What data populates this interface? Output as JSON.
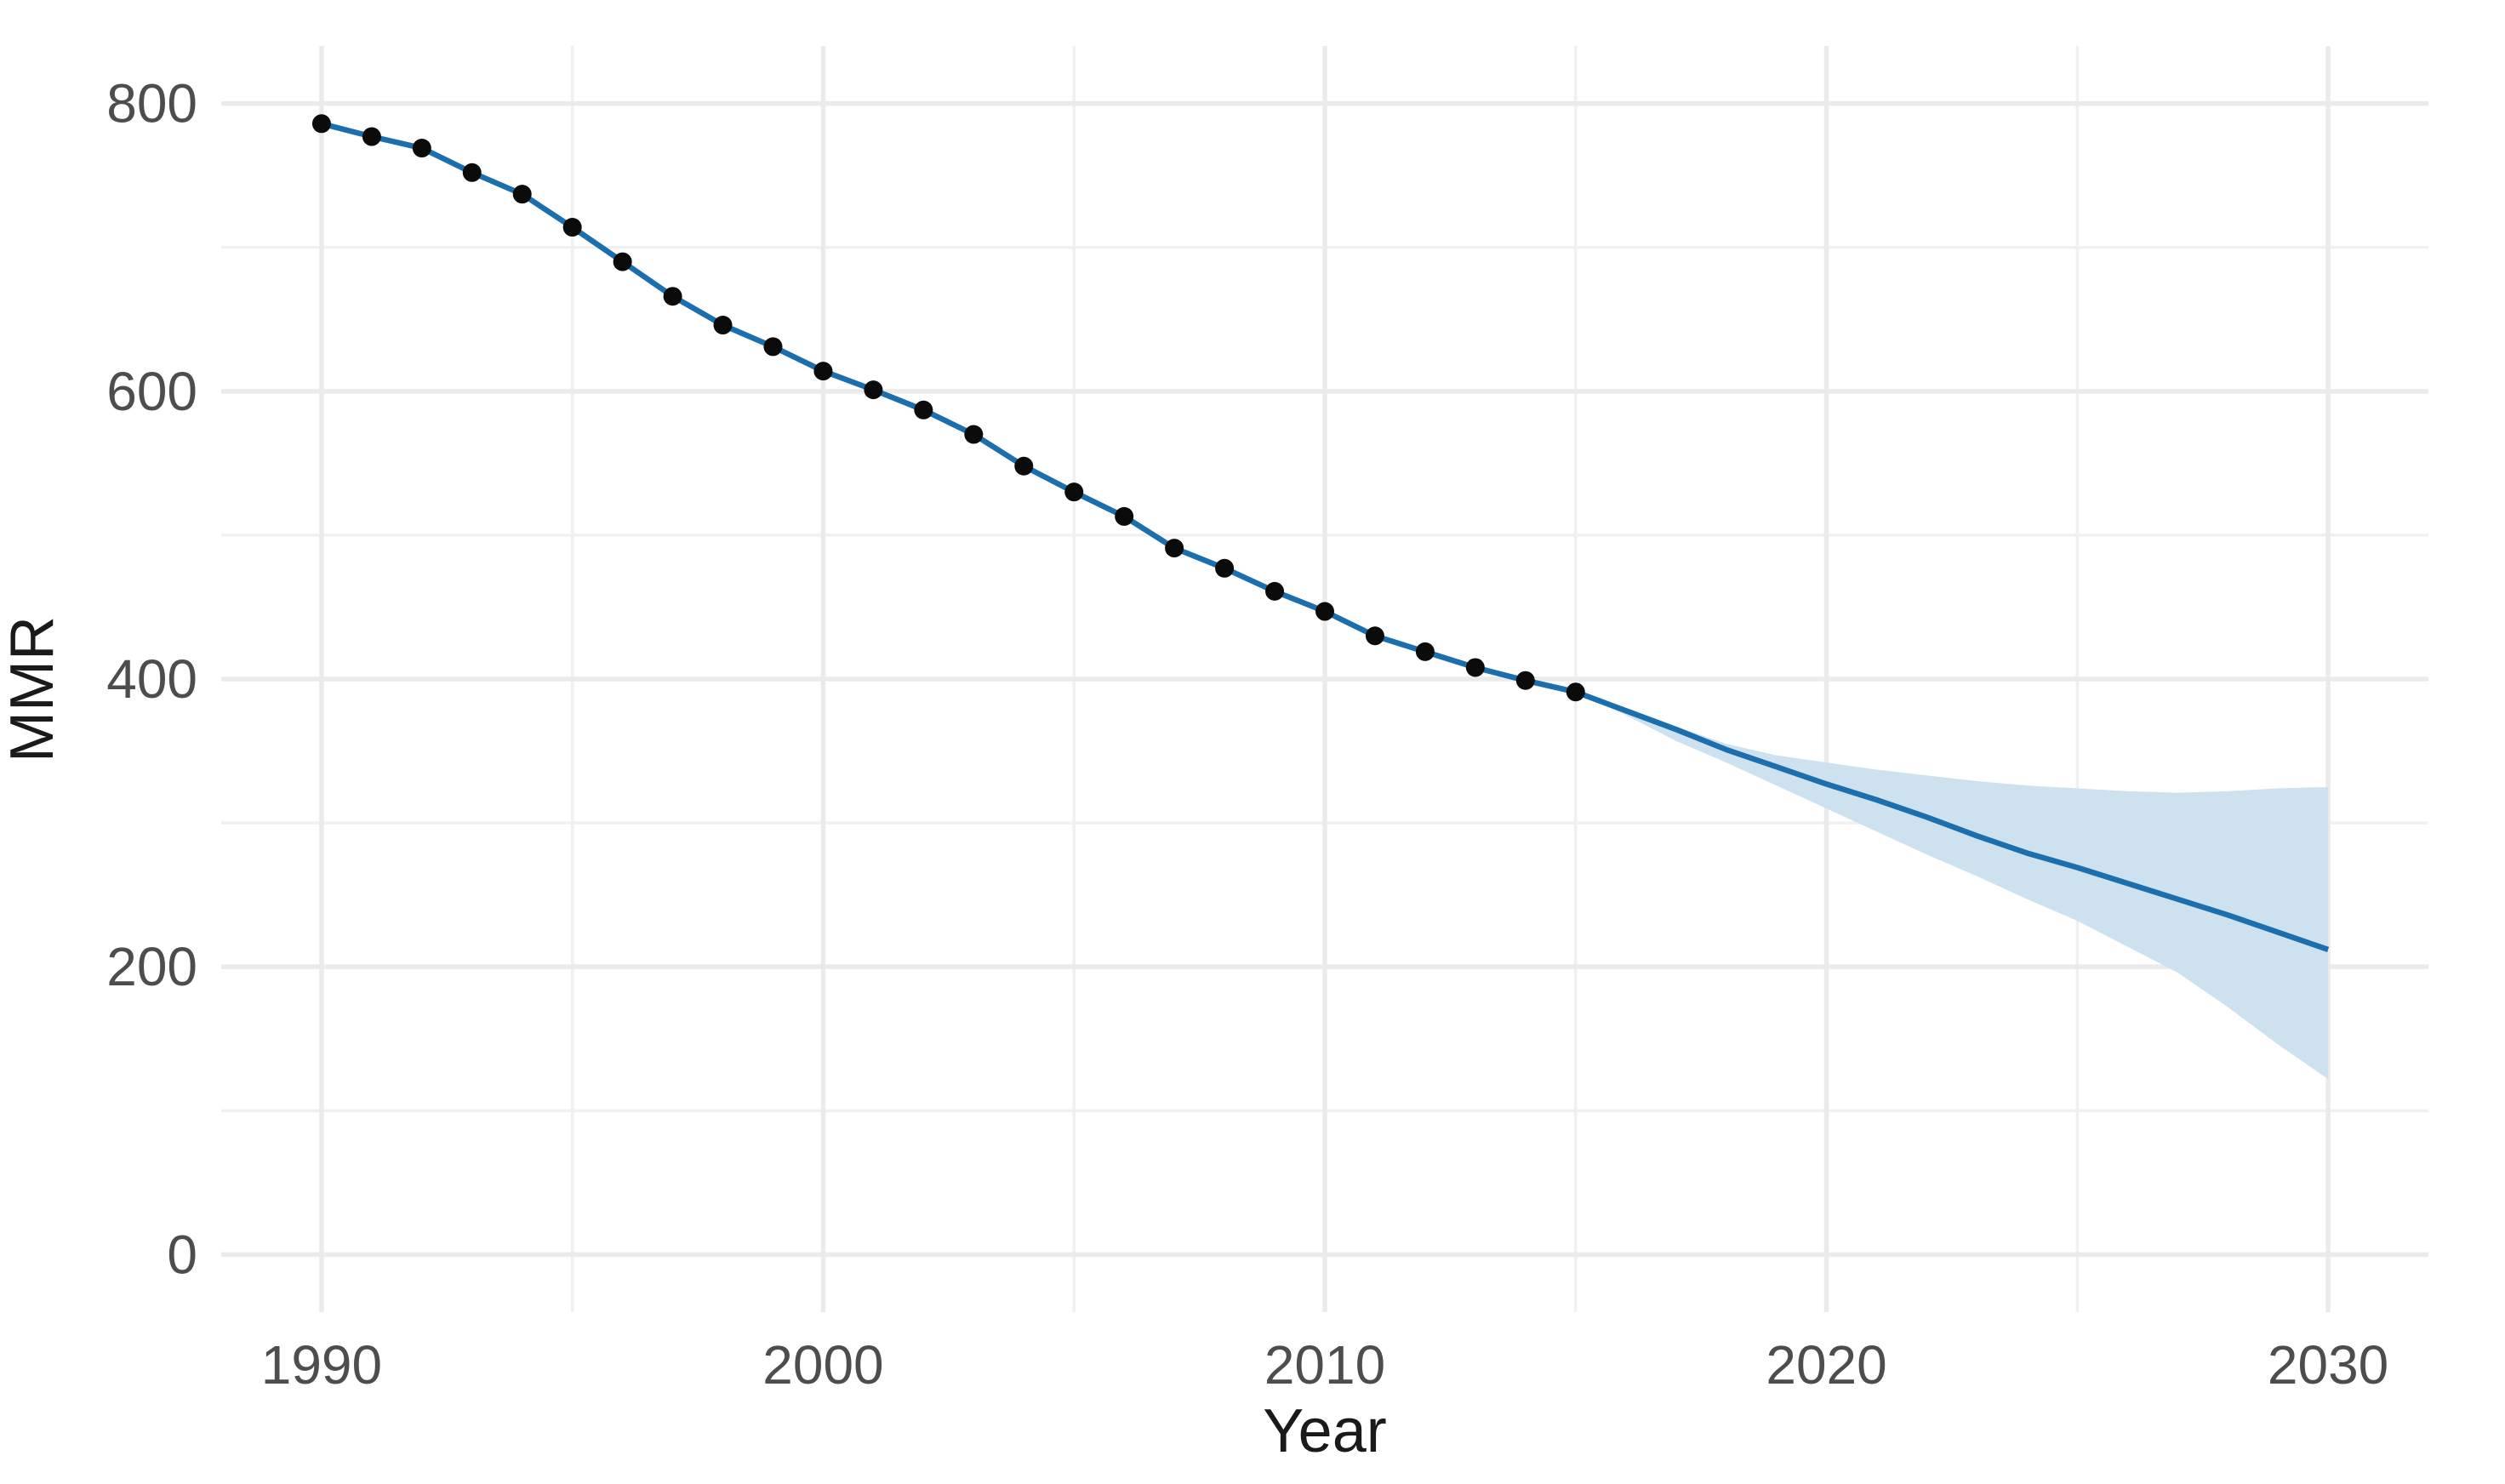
{
  "chart_data": {
    "type": "line",
    "title": "",
    "xlabel": "Year",
    "ylabel": "MMR",
    "xlim": [
      1988,
      2032
    ],
    "ylim": [
      -40,
      840
    ],
    "x_ticks": [
      1990,
      2000,
      2010,
      2020,
      2030
    ],
    "x_minor_ticks": [
      1995,
      2005,
      2015,
      2025
    ],
    "y_ticks": [
      0,
      200,
      400,
      600,
      800
    ],
    "y_minor_ticks": [
      100,
      300,
      500,
      700
    ],
    "grid": "major+minor",
    "legend_position": "none",
    "background": "#ffffff",
    "series": [
      {
        "name": "observed-mmr",
        "style": "points+line",
        "x": [
          1990,
          1991,
          1992,
          1993,
          1994,
          1995,
          1996,
          1997,
          1998,
          1999,
          2000,
          2001,
          2002,
          2003,
          2004,
          2005,
          2006,
          2007,
          2008,
          2009,
          2010,
          2011,
          2012,
          2013,
          2014,
          2015
        ],
        "y": [
          786,
          777,
          769,
          752,
          737,
          714,
          690,
          666,
          646,
          631,
          614,
          601,
          587,
          570,
          548,
          530,
          513,
          491,
          477,
          461,
          447,
          430,
          419,
          408,
          399,
          391
        ]
      },
      {
        "name": "projected-mmr",
        "style": "line",
        "x": [
          2015,
          2016,
          2017,
          2018,
          2019,
          2020,
          2021,
          2022,
          2023,
          2024,
          2025,
          2026,
          2027,
          2028,
          2029,
          2030
        ],
        "y": [
          391,
          378,
          365,
          351,
          339,
          327,
          316,
          304,
          291,
          279,
          269,
          258,
          247,
          236,
          224,
          212
        ]
      },
      {
        "name": "projection-interval",
        "style": "ribbon",
        "x": [
          2015,
          2016,
          2017,
          2018,
          2019,
          2020,
          2021,
          2022,
          2023,
          2024,
          2025,
          2026,
          2027,
          2028,
          2029,
          2030
        ],
        "upper": [
          391,
          380,
          367,
          355,
          347,
          342,
          337,
          333,
          329,
          326,
          324,
          322,
          321,
          322,
          324,
          325
        ],
        "lower": [
          391,
          375,
          357,
          342,
          326,
          310,
          294,
          278,
          263,
          247,
          232,
          214,
          196,
          172,
          146,
          122
        ]
      }
    ],
    "colors": {
      "line": "#1b6fae",
      "ribbon": "#cde1ee",
      "point": "#0b0b0b",
      "grid_major": "#ebebeb",
      "grid_minor": "#f0f0f0",
      "tick_label": "#4d4d4d",
      "axis_title": "#1a1a1a"
    }
  }
}
